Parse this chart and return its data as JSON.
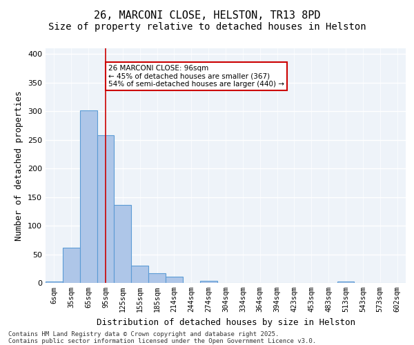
{
  "title_line1": "26, MARCONI CLOSE, HELSTON, TR13 8PD",
  "title_line2": "Size of property relative to detached houses in Helston",
  "xlabel": "Distribution of detached houses by size in Helston",
  "ylabel": "Number of detached properties",
  "bar_labels": [
    "6sqm",
    "35sqm",
    "65sqm",
    "95sqm",
    "125sqm",
    "155sqm",
    "185sqm",
    "214sqm",
    "244sqm",
    "274sqm",
    "304sqm",
    "334sqm",
    "364sqm",
    "394sqm",
    "423sqm",
    "453sqm",
    "483sqm",
    "513sqm",
    "543sqm",
    "573sqm",
    "602sqm"
  ],
  "bar_values": [
    2,
    61,
    301,
    258,
    136,
    30,
    17,
    11,
    0,
    4,
    0,
    0,
    0,
    0,
    0,
    0,
    0,
    2,
    0,
    0,
    0
  ],
  "bar_color": "#aec6e8",
  "bar_edge_color": "#5b9bd5",
  "background_color": "#eef3f9",
  "grid_color": "#ffffff",
  "vline_x": 3,
  "vline_color": "#cc0000",
  "annotation_text": "26 MARCONI CLOSE: 96sqm\n← 45% of detached houses are smaller (367)\n54% of semi-detached houses are larger (440) →",
  "annotation_box_color": "#cc0000",
  "ylim": [
    0,
    410
  ],
  "yticks": [
    0,
    50,
    100,
    150,
    200,
    250,
    300,
    350,
    400
  ],
  "footer_text": "Contains HM Land Registry data © Crown copyright and database right 2025.\nContains public sector information licensed under the Open Government Licence v3.0.",
  "title_fontsize": 11,
  "subtitle_fontsize": 10,
  "tick_fontsize": 7.5,
  "ylabel_fontsize": 9,
  "xlabel_fontsize": 9
}
